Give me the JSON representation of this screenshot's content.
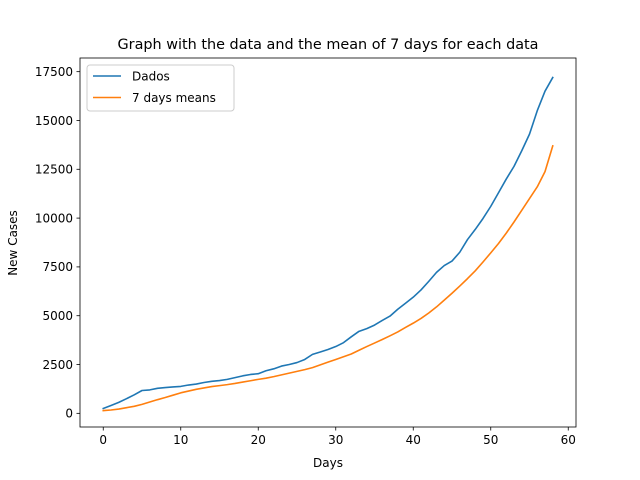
{
  "chart_data": {
    "type": "line",
    "title": "Graph with the data and the mean of 7 days for each data",
    "xlabel": "Days",
    "ylabel": "New Cases",
    "xlim": [
      -3.0,
      61.0
    ],
    "ylim": [
      -700,
      18200
    ],
    "xticks": [
      0,
      10,
      20,
      30,
      40,
      50,
      60
    ],
    "yticks": [
      0,
      2500,
      5000,
      7500,
      10000,
      12500,
      15000,
      17500
    ],
    "xtick_labels": [
      "0",
      "10",
      "20",
      "30",
      "40",
      "50",
      "60"
    ],
    "ytick_labels": [
      "0",
      "2500",
      "5000",
      "7500",
      "10000",
      "12500",
      "15000",
      "17500"
    ],
    "grid": false,
    "legend_position": "top-left",
    "series": [
      {
        "name": "Dados",
        "color": "#1f77b4",
        "x": [
          0,
          1,
          2,
          3,
          4,
          5,
          6,
          7,
          8,
          9,
          10,
          11,
          12,
          13,
          14,
          15,
          16,
          17,
          18,
          19,
          20,
          21,
          22,
          23,
          24,
          25,
          26,
          27,
          28,
          29,
          30,
          31,
          32,
          33,
          34,
          35,
          36,
          37,
          38,
          39,
          40,
          41,
          42,
          43,
          44,
          45,
          46,
          47,
          48,
          49,
          50,
          51,
          52,
          53,
          54,
          55,
          56,
          57,
          58
        ],
        "y": [
          250,
          400,
          560,
          750,
          950,
          1170,
          1200,
          1280,
          1320,
          1350,
          1380,
          1450,
          1500,
          1580,
          1640,
          1680,
          1740,
          1830,
          1920,
          1990,
          2030,
          2180,
          2280,
          2420,
          2500,
          2600,
          2760,
          3020,
          3140,
          3270,
          3420,
          3620,
          3920,
          4200,
          4340,
          4520,
          4760,
          4980,
          5330,
          5640,
          5950,
          6320,
          6760,
          7220,
          7570,
          7800,
          8250,
          8900,
          9420,
          9980,
          10600,
          11300,
          12000,
          12650,
          13450,
          14300,
          15500,
          16500,
          17200
        ]
      },
      {
        "name": "7 days means",
        "color": "#ff7f0e",
        "x": [
          0,
          1,
          2,
          3,
          4,
          5,
          6,
          7,
          8,
          9,
          10,
          11,
          12,
          13,
          14,
          15,
          16,
          17,
          18,
          19,
          20,
          21,
          22,
          23,
          24,
          25,
          26,
          27,
          28,
          29,
          30,
          31,
          32,
          33,
          34,
          35,
          36,
          37,
          38,
          39,
          40,
          41,
          42,
          43,
          44,
          45,
          46,
          47,
          48,
          49,
          50,
          51,
          52,
          53,
          54,
          55,
          56,
          57,
          58
        ],
        "y": [
          140,
          170,
          220,
          290,
          360,
          460,
          580,
          700,
          810,
          930,
          1050,
          1140,
          1230,
          1300,
          1370,
          1420,
          1470,
          1530,
          1600,
          1670,
          1740,
          1800,
          1880,
          1970,
          2060,
          2150,
          2240,
          2340,
          2480,
          2620,
          2760,
          2900,
          3040,
          3230,
          3420,
          3600,
          3780,
          3970,
          4170,
          4400,
          4620,
          4860,
          5140,
          5450,
          5800,
          6150,
          6520,
          6900,
          7300,
          7750,
          8220,
          8700,
          9230,
          9800,
          10400,
          11000,
          11600,
          12380,
          13700
        ]
      }
    ]
  }
}
